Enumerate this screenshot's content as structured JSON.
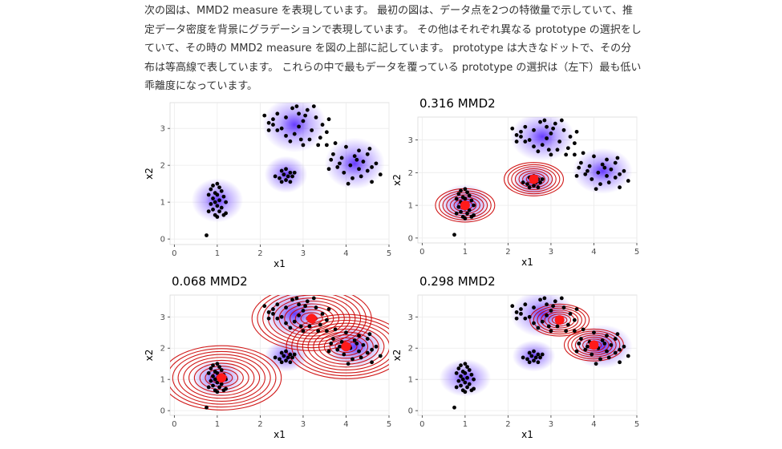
{
  "article": {
    "paragraph": "次の図は、MMD2 measure を表現しています。 最初の図は、データ点を2つの特徴量で示していて、推定データ密度を背景にグラデーションで表現しています。 その他はそれぞれ異なる prototype の選択をしていて、その時の MMD2 measure を図の上部に記しています。 prototype は大きなドットで、その分布は等高線で表しています。 これらの中で最もデータを覆っている prototype の選択は（左下）最も低い乖離度になっています。"
  },
  "chart_data": [
    {
      "type": "scatter",
      "title": "",
      "xlabel": "x1",
      "ylabel": "x2",
      "xlim": [
        -0.1,
        5.0
      ],
      "ylim": [
        -0.15,
        3.7
      ],
      "xticks": [
        "0",
        "1",
        "2",
        "3",
        "4",
        "5"
      ],
      "yticks": [
        "0",
        "1",
        "2",
        "3"
      ],
      "prototypes": []
    },
    {
      "type": "scatter",
      "title": "0.316 MMD2",
      "xlabel": "x1",
      "ylabel": "x2",
      "xlim": [
        -0.1,
        5.0
      ],
      "ylim": [
        -0.15,
        3.7
      ],
      "xticks": [
        "0",
        "1",
        "2",
        "3",
        "4",
        "5"
      ],
      "yticks": [
        "0",
        "1",
        "2",
        "3"
      ],
      "prototypes": [
        {
          "x": 1.0,
          "y": 1.0
        },
        {
          "x": 2.6,
          "y": 1.8
        }
      ]
    },
    {
      "type": "scatter",
      "title": "0.068 MMD2",
      "xlabel": "x1",
      "ylabel": "x2",
      "xlim": [
        -0.1,
        5.0
      ],
      "ylim": [
        -0.15,
        3.7
      ],
      "xticks": [
        "0",
        "1",
        "2",
        "3",
        "4",
        "5"
      ],
      "yticks": [
        "0",
        "1",
        "2",
        "3"
      ],
      "prototypes": [
        {
          "x": 1.1,
          "y": 1.05
        },
        {
          "x": 3.2,
          "y": 2.95
        },
        {
          "x": 4.0,
          "y": 2.05
        }
      ]
    },
    {
      "type": "scatter",
      "title": "0.298 MMD2",
      "xlabel": "x1",
      "ylabel": "x2",
      "xlim": [
        -0.1,
        5.0
      ],
      "ylim": [
        -0.15,
        3.7
      ],
      "xticks": [
        "0",
        "1",
        "2",
        "3",
        "4",
        "5"
      ],
      "yticks": [
        "0",
        "1",
        "2",
        "3"
      ],
      "prototypes": [
        {
          "x": 3.2,
          "y": 2.9
        },
        {
          "x": 4.0,
          "y": 2.1
        }
      ]
    }
  ],
  "data_points": [
    [
      1.0,
      1.5
    ],
    [
      0.9,
      1.45
    ],
    [
      1.05,
      1.4
    ],
    [
      0.85,
      1.35
    ],
    [
      1.1,
      1.3
    ],
    [
      0.95,
      1.25
    ],
    [
      1.0,
      1.2
    ],
    [
      0.8,
      1.2
    ],
    [
      1.15,
      1.15
    ],
    [
      0.9,
      1.1
    ],
    [
      1.05,
      1.05
    ],
    [
      0.95,
      1.0
    ],
    [
      1.2,
      1.0
    ],
    [
      0.85,
      0.95
    ],
    [
      1.0,
      0.9
    ],
    [
      1.1,
      0.85
    ],
    [
      0.9,
      0.8
    ],
    [
      1.05,
      0.75
    ],
    [
      0.8,
      0.75
    ],
    [
      1.2,
      0.7
    ],
    [
      0.95,
      0.65
    ],
    [
      1.0,
      0.6
    ],
    [
      1.15,
      0.65
    ],
    [
      0.75,
      0.1
    ],
    [
      2.5,
      1.85
    ],
    [
      2.6,
      1.9
    ],
    [
      2.7,
      1.8
    ],
    [
      2.55,
      1.75
    ],
    [
      2.65,
      1.7
    ],
    [
      2.45,
      1.65
    ],
    [
      2.75,
      1.7
    ],
    [
      2.6,
      1.6
    ],
    [
      2.5,
      1.55
    ],
    [
      2.7,
      1.55
    ],
    [
      2.35,
      1.7
    ],
    [
      2.8,
      1.8
    ],
    [
      2.1,
      3.35
    ],
    [
      2.3,
      3.1
    ],
    [
      2.4,
      3.4
    ],
    [
      2.2,
      2.95
    ],
    [
      2.6,
      3.3
    ],
    [
      2.75,
      3.55
    ],
    [
      2.9,
      3.4
    ],
    [
      2.5,
      3.0
    ],
    [
      2.8,
      2.85
    ],
    [
      3.0,
      3.2
    ],
    [
      3.1,
      3.5
    ],
    [
      2.95,
      2.7
    ],
    [
      2.7,
      2.65
    ],
    [
      3.2,
      2.95
    ],
    [
      3.3,
      3.3
    ],
    [
      3.45,
      3.1
    ],
    [
      3.0,
      2.55
    ],
    [
      3.4,
      2.75
    ],
    [
      3.6,
      3.25
    ],
    [
      3.55,
      2.9
    ],
    [
      2.4,
      2.95
    ],
    [
      2.3,
      3.25
    ],
    [
      2.9,
      3.05
    ],
    [
      3.15,
      2.7
    ],
    [
      2.6,
      2.8
    ],
    [
      3.35,
      2.55
    ],
    [
      2.2,
      3.15
    ],
    [
      3.05,
      3.35
    ],
    [
      2.85,
      3.6
    ],
    [
      3.25,
      3.6
    ],
    [
      3.55,
      2.55
    ],
    [
      3.7,
      2.3
    ],
    [
      3.8,
      1.95
    ],
    [
      3.9,
      2.2
    ],
    [
      4.0,
      2.5
    ],
    [
      4.1,
      2.0
    ],
    [
      4.2,
      2.25
    ],
    [
      4.3,
      1.9
    ],
    [
      4.4,
      2.1
    ],
    [
      4.5,
      2.3
    ],
    [
      4.6,
      1.95
    ],
    [
      3.6,
      1.9
    ],
    [
      3.95,
      1.8
    ],
    [
      4.15,
      1.65
    ],
    [
      4.3,
      2.4
    ],
    [
      4.5,
      1.85
    ],
    [
      4.7,
      2.05
    ],
    [
      4.8,
      1.75
    ],
    [
      3.75,
      2.6
    ],
    [
      4.05,
      1.5
    ],
    [
      4.35,
      1.7
    ],
    [
      4.55,
      2.45
    ],
    [
      3.85,
      2.05
    ],
    [
      4.25,
      2.15
    ],
    [
      3.65,
      2.15
    ],
    [
      4.6,
      1.55
    ]
  ],
  "blobs": [
    {
      "x": 1.0,
      "y": 1.05,
      "r": 0.6
    },
    {
      "x": 2.6,
      "y": 1.75,
      "r": 0.5
    },
    {
      "x": 2.8,
      "y": 3.1,
      "r": 0.75
    },
    {
      "x": 4.2,
      "y": 2.05,
      "r": 0.7
    }
  ],
  "colors": {
    "point": "#000000",
    "prototype": "#ff1a1a",
    "contour": "#cc0000",
    "density": "#4d1aff",
    "panel_bg": "#ffffff",
    "grid": "#ebebeb"
  }
}
